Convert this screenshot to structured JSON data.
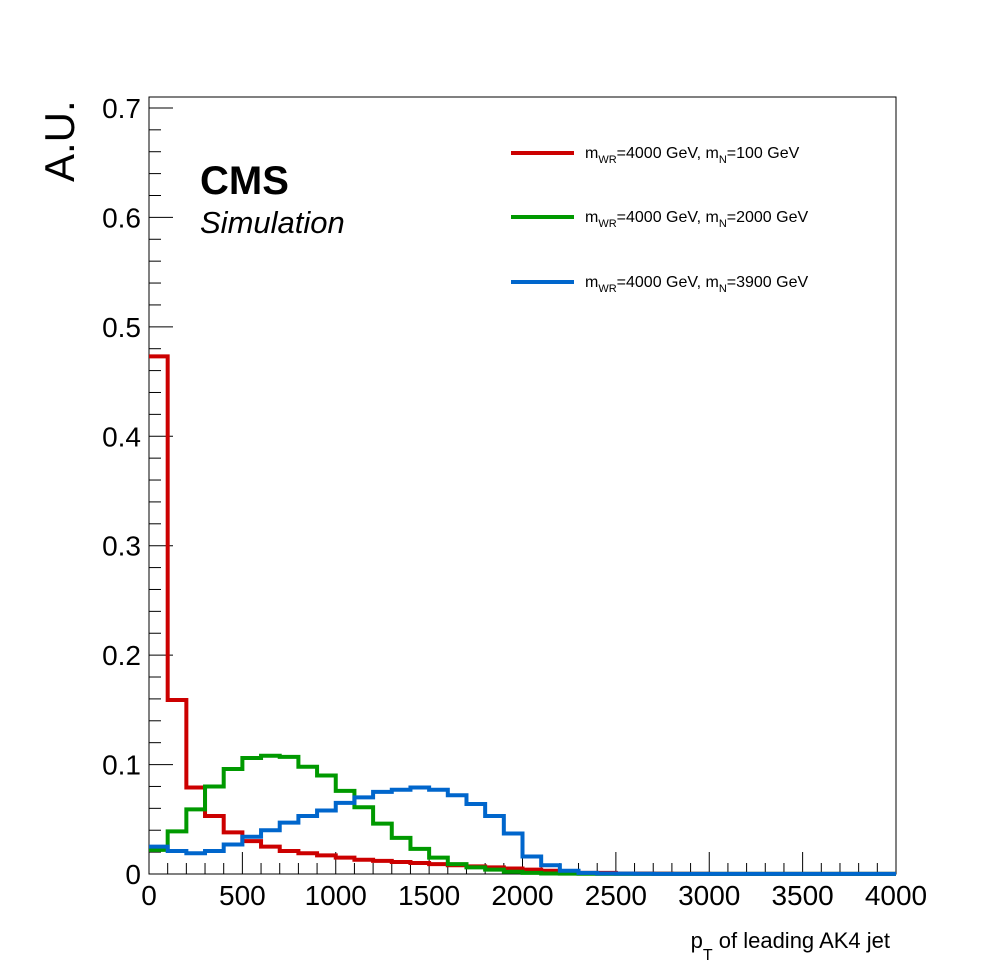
{
  "chart_data": {
    "type": "step-histogram",
    "ylabel": "A.U.",
    "xlim": [
      0,
      4000
    ],
    "ylim": [
      0,
      0.71
    ],
    "bin_width": 100,
    "x_ticks": [
      "0",
      "500",
      "1000",
      "1500",
      "2000",
      "2500",
      "3000",
      "3500",
      "4000"
    ],
    "y_ticks": [
      "0",
      "0.1",
      "0.2",
      "0.3",
      "0.4",
      "0.5",
      "0.6",
      "0.7"
    ],
    "grid": false,
    "legend_position": "top-right",
    "annotations": {
      "experiment": "CMS",
      "status": "Simulation"
    },
    "xlabel": {
      "p": "p",
      "T": "T",
      "rest": " of leading AK4 jet"
    },
    "series": [
      {
        "color": "#cc0000",
        "legend": {
          "m1": "m",
          "s1": "WR",
          "t1": "=4000 GeV, m",
          "s2": "N",
          "t2": "=100 GeV"
        },
        "values": [
          0.473,
          0.159,
          0.079,
          0.053,
          0.038,
          0.03,
          0.025,
          0.021,
          0.019,
          0.017,
          0.015,
          0.013,
          0.012,
          0.011,
          0.01,
          0.009,
          0.008,
          0.007,
          0.006,
          0.005,
          0.004,
          0.003,
          0.002,
          0.001,
          0.001,
          0.0005,
          0.0005,
          0.0003,
          0.0002,
          0.0002,
          0.0001,
          0.0001,
          0.0001,
          0.0001,
          0.0001,
          0.0001,
          0.0001,
          0.0001,
          0.0001,
          0.0001
        ]
      },
      {
        "color": "#009900",
        "legend": {
          "m1": "m",
          "s1": "WR",
          "t1": "=4000 GeV, m",
          "s2": "N",
          "t2": "=2000 GeV"
        },
        "values": [
          0.022,
          0.039,
          0.059,
          0.08,
          0.096,
          0.106,
          0.108,
          0.107,
          0.098,
          0.09,
          0.076,
          0.061,
          0.046,
          0.033,
          0.023,
          0.015,
          0.009,
          0.006,
          0.004,
          0.002,
          0.001,
          0.0005,
          0.0003,
          0.0002,
          0.0001,
          0.0001,
          0.0001,
          0.0001,
          0.0001,
          0.0001,
          0.0001,
          0.0001,
          0.0001,
          0.0001,
          0.0001,
          0.0001,
          0.0001,
          0.0001,
          0.0001,
          0.0001
        ]
      },
      {
        "color": "#0066cc",
        "legend": {
          "m1": "m",
          "s1": "WR",
          "t1": "=4000 GeV, m",
          "s2": "N",
          "t2": "=3900 GeV"
        },
        "values": [
          0.025,
          0.021,
          0.019,
          0.021,
          0.027,
          0.034,
          0.04,
          0.047,
          0.053,
          0.058,
          0.065,
          0.07,
          0.075,
          0.077,
          0.079,
          0.077,
          0.072,
          0.064,
          0.053,
          0.037,
          0.016,
          0.008,
          0.003,
          0.001,
          0.0005,
          0.0003,
          0.0002,
          0.0001,
          0.0001,
          0.0001,
          0.0001,
          0.0001,
          0.0001,
          0.0001,
          0.0001,
          0.0001,
          0.0001,
          0.0001,
          0.0001,
          0.0001
        ]
      }
    ]
  }
}
